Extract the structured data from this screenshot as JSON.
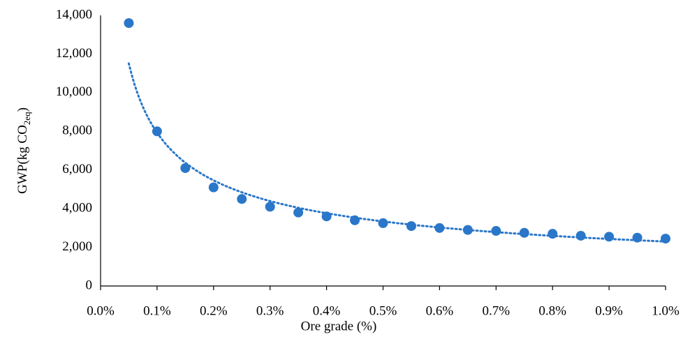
{
  "chart_data": {
    "type": "scatter",
    "xlabel": "Ore grade (%)",
    "ylabel": [
      "GWP(kg CO",
      "2eq",
      ")"
    ],
    "series": [
      {
        "color": "#2a77c9",
        "x": [
          0.05,
          0.1,
          0.15,
          0.2,
          0.25,
          0.3,
          0.35,
          0.4,
          0.45,
          0.5,
          0.55,
          0.6,
          0.65,
          0.7,
          0.75,
          0.8,
          0.85,
          0.9,
          0.95,
          1.0
        ],
        "values": [
          13600,
          8000,
          6100,
          5100,
          4500,
          4100,
          3800,
          3600,
          3400,
          3250,
          3100,
          3000,
          2900,
          2850,
          2750,
          2700,
          2600,
          2550,
          2500,
          2450
        ]
      }
    ],
    "trendline": "power",
    "xlim": [
      0,
      1.0
    ],
    "xticks": [
      {
        "value": 0,
        "label": "0.0%"
      },
      {
        "value": 0.1,
        "label": "0.1%"
      },
      {
        "value": 0.2,
        "label": "0.2%"
      },
      {
        "value": 0.3,
        "label": "0.3%"
      },
      {
        "value": 0.4,
        "label": "0.4%"
      },
      {
        "value": 0.5,
        "label": "0.5%"
      },
      {
        "value": 0.6,
        "label": "0.6%"
      },
      {
        "value": 0.7,
        "label": "0.7%"
      },
      {
        "value": 0.8,
        "label": "0.8%"
      },
      {
        "value": 0.9,
        "label": "0.9%"
      },
      {
        "value": 1.0,
        "label": "1.0%"
      }
    ],
    "ylim": [
      0,
      14000
    ],
    "yticks": [
      0,
      {
        "value": 2000,
        "label": "2,000"
      },
      {
        "value": 4000,
        "label": "4,000"
      },
      {
        "value": 6000,
        "label": "6,000"
      },
      {
        "value": 8000,
        "label": "8,000"
      },
      {
        "value": 10000,
        "label": "10,000"
      },
      {
        "value": 12000,
        "label": "12,000"
      },
      {
        "value": 14000,
        "label": "14,000"
      }
    ],
    "grid": false
  }
}
